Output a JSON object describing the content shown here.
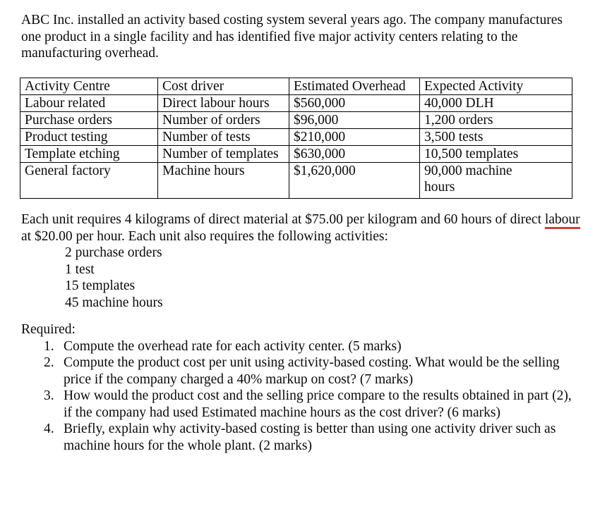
{
  "intro": "ABC Inc. installed an activity based costing system several years ago. The company manufactures one product in a single facility and has identified five major activity centers relating to the manufacturing overhead.",
  "table": {
    "headers": [
      "Activity Centre",
      "Cost driver",
      "Estimated Overhead",
      "Expected Activity"
    ],
    "rows": [
      [
        "Labour related",
        "Direct labour hours",
        "$560,000",
        "40,000 DLH"
      ],
      [
        "Purchase orders",
        "Number of orders",
        "$96,000",
        "1,200 orders"
      ],
      [
        "Product testing",
        "Number of tests",
        "$210,000",
        "3,500 tests"
      ],
      [
        "Template etching",
        "Number of templates",
        "$630,000",
        "10,500 templates"
      ],
      [
        "General factory",
        "Machine hours",
        "$1,620,000",
        "90,000 machine\nhours"
      ]
    ]
  },
  "unit_para": {
    "before": "Each unit requires 4 kilograms of direct material at $75.00 per kilogram and 60 hours of direct ",
    "misspelled_word": "labour",
    "after": " at $20.00 per hour. Each unit also requires the following activities:"
  },
  "unit_activities": [
    "2 purchase orders",
    "1 test",
    "15 templates",
    "45 machine hours"
  ],
  "required_label": "Required:",
  "requirements": [
    {
      "num": "1.",
      "text": "Compute the overhead rate for each activity center. (5 marks)"
    },
    {
      "num": "2.",
      "text": "Compute the product cost per unit using activity-based costing. What would be the selling price if the company charged a 40% markup on cost? (7 marks)"
    },
    {
      "num": "3.",
      "text": "How would the product cost and the selling price compare to the results obtained in part (2), if the company had used Estimated machine hours as the cost driver? (6 marks)"
    },
    {
      "num": "4.",
      "text": "Briefly, explain why activity-based costing is better than using one activity driver such as machine hours for the whole plant. (2 marks)"
    }
  ],
  "colors": {
    "spellcheck_underline": "#c9443a",
    "text": "#0a0a0a",
    "background": "#ffffff"
  }
}
